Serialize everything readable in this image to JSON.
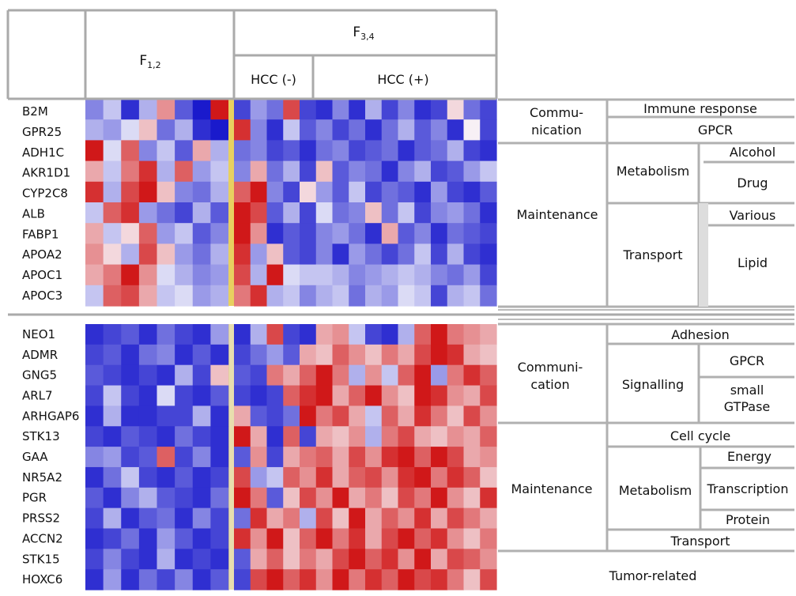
{
  "header": {
    "f12_base": "F",
    "f12_sub": "1,2",
    "f34_base": "F",
    "f34_sub": "3,4",
    "hcc_neg": "HCC (-)",
    "hcc_pos": "HCC (+)"
  },
  "colors": {
    "high": "#cc0000",
    "low": "#1a1acc",
    "mid": "#f7f7f7",
    "divider": "#e8d060"
  },
  "top_genes": [
    "B2M",
    "GPR25",
    "ADH1C",
    "AKR1D1",
    "CYP2C8",
    "ALB",
    "FABP1",
    "APOA2",
    "APOC1",
    "APOC3"
  ],
  "bottom_genes": [
    "NEO1",
    "ADMR",
    "GNG5",
    "ARL7",
    "ARHGAP6",
    "STK13",
    "GAA",
    "NR5A2",
    "PGR",
    "PRSS2",
    "ACCN2",
    "STK15",
    "HOXC6"
  ],
  "top_annotation": {
    "communication": "Commu-\nnication",
    "immune": "Immune response",
    "gpcr": "GPCR",
    "maintenance": "Maintenance",
    "metabolism": "Metabolism",
    "alcohol": "Alcohol",
    "drug": "Drug",
    "transport": "Transport",
    "various": "Various",
    "lipid": "Lipid"
  },
  "bottom_annotation": {
    "communication": "Communi-\ncation",
    "adhesion": "Adhesion",
    "signalling": "Signalling",
    "gpcr": "GPCR",
    "small_gtpase": "small\nGTPase",
    "maintenance": "Maintenance",
    "cell_cycle": "Cell cycle",
    "metabolism": "Metabolism",
    "energy": "Energy",
    "transcription": "Transcription",
    "protein": "Protein",
    "transport": "Transport",
    "tumor": "Tumor-related"
  },
  "heatmap": {
    "top": [
      [
        -0.5,
        -0.2,
        -0.9,
        -0.3,
        0.4,
        -0.7,
        -1,
        0.9,
        -0.8,
        -0.4,
        -0.6,
        0.7,
        -0.8,
        -0.9,
        -0.5,
        -0.9,
        -0.3,
        -0.8,
        -0.5,
        -0.9,
        -0.8,
        0.1,
        -0.6,
        -0.8
      ],
      [
        -0.3,
        -0.4,
        -0.1,
        0.2,
        -0.6,
        -0.3,
        -0.9,
        -1,
        0.8,
        -0.5,
        -0.9,
        -0.2,
        -0.7,
        -0.5,
        -0.8,
        -0.6,
        -0.9,
        -0.6,
        -0.3,
        -0.7,
        -0.5,
        -0.9,
        0.0,
        -0.8
      ],
      [
        0.9,
        -0.1,
        0.6,
        -0.5,
        -0.2,
        -0.7,
        0.3,
        -0.3,
        -0.6,
        -0.5,
        -0.8,
        -0.7,
        -0.9,
        -0.6,
        -0.5,
        -0.8,
        -0.7,
        -0.6,
        -0.9,
        -0.7,
        -0.6,
        -0.3,
        -0.8,
        -0.9
      ],
      [
        0.3,
        -0.2,
        0.5,
        0.8,
        -0.3,
        0.6,
        -0.4,
        -0.2,
        -0.5,
        0.3,
        -0.6,
        -0.3,
        -0.8,
        0.2,
        -0.7,
        -0.5,
        -0.6,
        -0.9,
        -0.5,
        -0.3,
        -0.8,
        -0.7,
        -0.4,
        -0.2
      ],
      [
        0.8,
        -0.3,
        0.7,
        0.9,
        0.2,
        -0.5,
        -0.6,
        -0.3,
        0.6,
        0.9,
        -0.5,
        -0.8,
        0.1,
        -0.4,
        -0.7,
        -0.2,
        -0.8,
        -0.6,
        -0.7,
        -0.9,
        -0.4,
        -0.8,
        -0.9,
        -0.7
      ],
      [
        -0.2,
        0.6,
        0.8,
        -0.4,
        -0.6,
        -0.8,
        -0.3,
        -0.7,
        0.9,
        0.7,
        -0.7,
        -0.3,
        -0.8,
        -0.1,
        -0.6,
        -0.5,
        0.2,
        -0.6,
        -0.2,
        -0.8,
        -0.5,
        -0.4,
        -0.6,
        -0.9
      ],
      [
        0.3,
        -0.2,
        0.1,
        0.6,
        -0.4,
        -0.2,
        -0.7,
        -0.5,
        0.9,
        0.4,
        -0.9,
        -0.7,
        -0.8,
        -0.5,
        -0.4,
        -0.6,
        -0.9,
        0.3,
        -0.7,
        -0.5,
        -0.9,
        -0.6,
        -0.7,
        -0.8
      ],
      [
        0.4,
        0.1,
        -0.3,
        0.7,
        0.2,
        -0.4,
        -0.6,
        -0.3,
        0.8,
        -0.4,
        0.2,
        -0.7,
        -0.8,
        -0.5,
        -0.9,
        -0.4,
        -0.6,
        -0.8,
        -0.6,
        -0.2,
        -0.8,
        -0.3,
        -0.8,
        -0.9
      ],
      [
        0.3,
        0.5,
        0.9,
        0.4,
        -0.1,
        -0.3,
        -0.5,
        -0.4,
        0.7,
        -0.3,
        0.9,
        -0.1,
        -0.2,
        -0.2,
        -0.3,
        -0.5,
        -0.4,
        -0.3,
        -0.2,
        -0.3,
        -0.5,
        -0.6,
        -0.4,
        -0.8
      ],
      [
        -0.2,
        0.6,
        0.7,
        0.3,
        -0.2,
        -0.1,
        -0.4,
        -0.3,
        0.5,
        0.8,
        -0.3,
        -0.2,
        -0.5,
        -0.3,
        -0.2,
        -0.6,
        -0.3,
        -0.4,
        -0.1,
        -0.2,
        -0.8,
        -0.3,
        -0.2,
        -0.6
      ]
    ],
    "bottom": [
      [
        -0.9,
        -0.8,
        -0.7,
        -0.9,
        -0.6,
        -0.8,
        -0.9,
        -0.4,
        -0.9,
        -0.3,
        0.7,
        -0.8,
        -0.9,
        0.3,
        0.4,
        -0.2,
        -0.8,
        -0.9,
        -0.3,
        0.6,
        0.9,
        0.5,
        0.4,
        0.3
      ],
      [
        -0.8,
        -0.7,
        -0.9,
        -0.6,
        -0.5,
        -0.9,
        -0.7,
        -0.9,
        -0.8,
        -0.6,
        -0.4,
        -0.7,
        0.3,
        0.2,
        0.6,
        0.4,
        0.2,
        0.5,
        0.3,
        0.7,
        0.9,
        0.8,
        0.3,
        0.2
      ],
      [
        -0.7,
        -0.8,
        -0.9,
        -0.8,
        -0.9,
        -0.3,
        -0.8,
        0.2,
        -0.7,
        -0.8,
        0.5,
        0.3,
        0.6,
        0.9,
        0.5,
        -0.3,
        0.4,
        -0.2,
        0.6,
        0.9,
        -0.4,
        0.5,
        0.8,
        0.6
      ],
      [
        -0.8,
        -0.2,
        -0.8,
        -0.9,
        -0.1,
        -0.8,
        -0.9,
        -0.7,
        -0.8,
        -0.9,
        -0.8,
        0.6,
        0.8,
        0.9,
        0.3,
        0.6,
        0.9,
        0.4,
        0.2,
        0.9,
        0.8,
        0.4,
        0.3,
        0.7
      ],
      [
        -0.9,
        -0.3,
        -0.9,
        -0.9,
        -0.8,
        -0.8,
        -0.3,
        -0.9,
        0.3,
        -0.7,
        -0.8,
        -0.6,
        0.9,
        0.5,
        0.7,
        0.3,
        -0.2,
        0.6,
        0.3,
        0.8,
        0.5,
        0.2,
        0.7,
        0.4
      ],
      [
        -0.8,
        -0.9,
        -0.7,
        -0.8,
        -0.9,
        -0.6,
        -0.8,
        -0.9,
        0.9,
        0.3,
        -0.9,
        0.6,
        -0.8,
        0.3,
        0.2,
        0.4,
        -0.3,
        0.5,
        0.7,
        0.3,
        0.2,
        0.4,
        0.3,
        0.6
      ],
      [
        -0.5,
        -0.4,
        -0.8,
        -0.7,
        0.6,
        -0.8,
        -0.5,
        -0.9,
        -0.7,
        0.4,
        -0.8,
        0.3,
        0.5,
        0.6,
        0.3,
        0.7,
        0.4,
        0.8,
        0.9,
        0.6,
        0.9,
        0.7,
        0.3,
        0.4
      ],
      [
        -0.9,
        -0.6,
        -0.2,
        -0.8,
        -0.9,
        -0.7,
        -0.9,
        -0.8,
        0.7,
        -0.4,
        -0.2,
        0.6,
        0.4,
        0.8,
        0.3,
        0.6,
        0.7,
        0.4,
        0.8,
        0.9,
        0.5,
        0.8,
        0.6,
        0.2
      ],
      [
        -0.7,
        -0.9,
        -0.5,
        -0.3,
        -0.7,
        -0.8,
        -0.9,
        -0.6,
        0.9,
        0.5,
        -0.7,
        0.2,
        0.7,
        0.4,
        0.9,
        0.3,
        0.5,
        0.2,
        0.7,
        0.5,
        0.9,
        0.4,
        0.2,
        0.8
      ],
      [
        -0.8,
        -0.3,
        -0.9,
        -0.7,
        -0.6,
        -0.9,
        -0.5,
        -0.8,
        -0.6,
        0.8,
        0.3,
        0.5,
        -0.3,
        0.7,
        0.2,
        0.9,
        0.3,
        0.6,
        0.4,
        0.8,
        0.3,
        0.7,
        0.5,
        0.3
      ],
      [
        -0.9,
        -0.8,
        -0.6,
        -0.9,
        -0.4,
        -0.7,
        -0.9,
        -0.8,
        0.8,
        0.4,
        0.9,
        0.2,
        0.6,
        0.9,
        0.5,
        0.8,
        0.3,
        0.7,
        0.9,
        0.6,
        0.8,
        0.4,
        0.2,
        0.5
      ],
      [
        -0.8,
        -0.5,
        -0.8,
        -0.9,
        -0.3,
        -0.9,
        -0.8,
        -0.9,
        -0.7,
        0.3,
        0.6,
        0.2,
        0.5,
        0.3,
        0.7,
        0.9,
        0.6,
        0.8,
        0.4,
        0.9,
        0.3,
        0.7,
        0.6,
        0.4
      ],
      [
        -0.9,
        -0.4,
        -0.9,
        -0.6,
        -0.8,
        -0.5,
        -0.9,
        -0.7,
        -0.8,
        0.7,
        0.9,
        0.6,
        0.8,
        0.4,
        0.9,
        0.5,
        0.8,
        0.6,
        0.9,
        0.7,
        0.8,
        0.5,
        0.2,
        0.7
      ]
    ]
  }
}
